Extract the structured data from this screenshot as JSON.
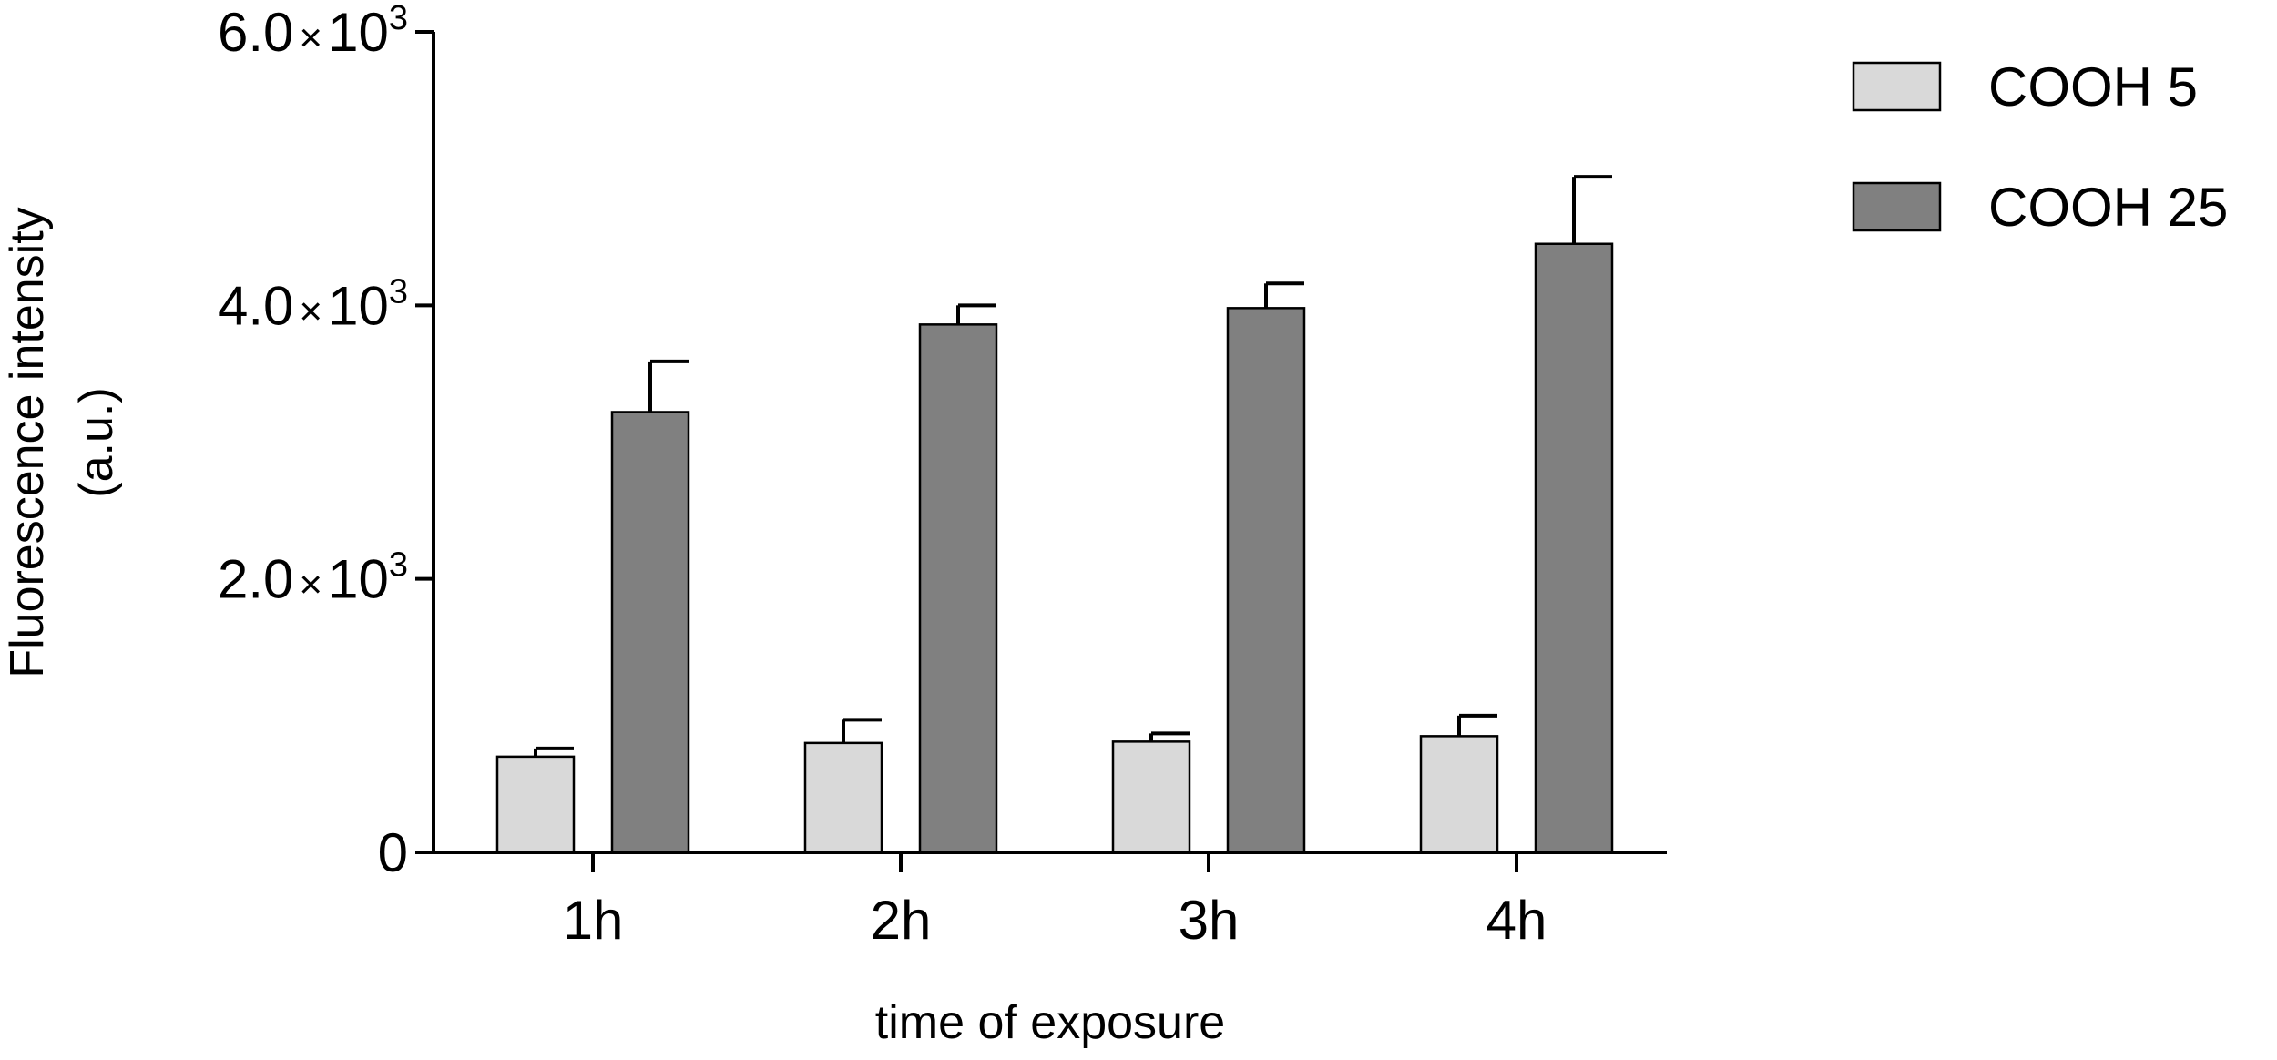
{
  "chart_data": {
    "type": "bar",
    "categories": [
      "1h",
      "2h",
      "3h",
      "4h"
    ],
    "series": [
      {
        "name": "COOH 5",
        "values": [
          700,
          800,
          810,
          850
        ],
        "error": [
          60,
          170,
          60,
          150
        ],
        "color": "#d9d9d9"
      },
      {
        "name": "COOH 25",
        "values": [
          3220,
          3860,
          3980,
          4450
        ],
        "error": [
          370,
          140,
          180,
          490
        ],
        "color": "#808080"
      }
    ],
    "xlabel": "time of exposure",
    "ylabel": [
      "Fluorescence intensity",
      "(a.u.)"
    ],
    "ylim": [
      0,
      6000
    ],
    "yticks": [
      {
        "value": 0,
        "mantissa": "0",
        "times": "",
        "base": "",
        "exp": ""
      },
      {
        "value": 2000,
        "mantissa": "2.0",
        "times": "×",
        "base": "10",
        "exp": "3"
      },
      {
        "value": 4000,
        "mantissa": "4.0",
        "times": "×",
        "base": "10",
        "exp": "3"
      },
      {
        "value": 6000,
        "mantissa": "6.0",
        "times": "×",
        "base": "10",
        "exp": "3"
      }
    ],
    "grid": false,
    "legend_position": "top-right"
  }
}
